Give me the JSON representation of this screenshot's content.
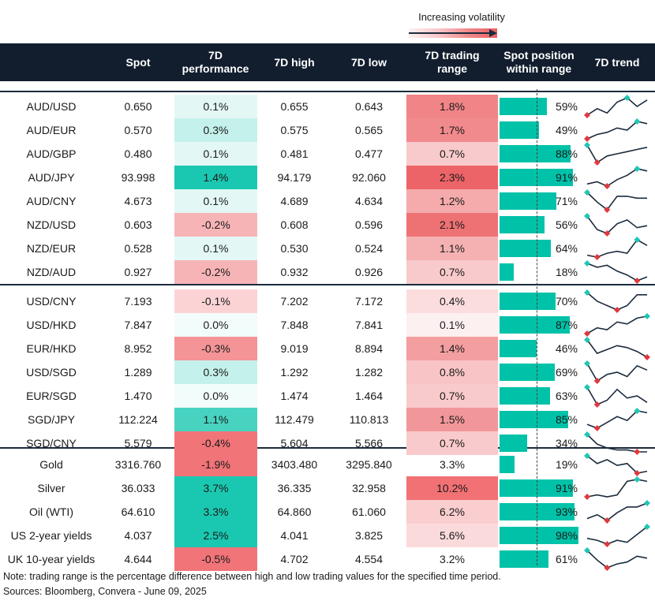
{
  "legend": {
    "label": "Increasing volatility"
  },
  "headers": {
    "spot": "Spot",
    "perf_line1": "7D",
    "perf_line2": "performance",
    "high": "7D high",
    "low": "7D low",
    "range_line1": "7D trading",
    "range_line2": "range",
    "pos_line1": "Spot position",
    "pos_line2": "within range",
    "trend": "7D trend"
  },
  "colors": {
    "header_bg": "#121e2e",
    "teal": "#00c2a8",
    "red": "#f06a6e",
    "trend_line": "#1b2b3c",
    "trend_high_marker": "#1fc7b4",
    "trend_low_marker": "#e0393e"
  },
  "groups": [
    {
      "rows": [
        {
          "pair": "AUD/USD",
          "spot": "0.650",
          "perf": "0.1%",
          "perf_val": 0.1,
          "high": "0.655",
          "low": "0.643",
          "range": "1.8%",
          "range_val": 1.8,
          "pos_pct": "59%",
          "pos": 59,
          "trend": [
            2,
            5,
            3,
            8,
            10,
            6,
            9
          ]
        },
        {
          "pair": "AUD/EUR",
          "spot": "0.570",
          "perf": "0.3%",
          "perf_val": 0.3,
          "high": "0.575",
          "low": "0.565",
          "range": "1.7%",
          "range_val": 1.7,
          "pos_pct": "49%",
          "pos": 49,
          "trend": [
            2,
            4,
            5,
            7,
            6,
            10,
            9
          ]
        },
        {
          "pair": "AUD/GBP",
          "spot": "0.480",
          "perf": "0.1%",
          "perf_val": 0.1,
          "high": "0.481",
          "low": "0.477",
          "range": "0.7%",
          "range_val": 0.7,
          "pos_pct": "88%",
          "pos": 88,
          "trend": [
            10,
            2,
            5,
            6,
            7,
            8,
            9
          ]
        },
        {
          "pair": "AUD/JPY",
          "spot": "93.998",
          "perf": "1.4%",
          "perf_val": 1.4,
          "high": "94.179",
          "low": "92.060",
          "range": "2.3%",
          "range_val": 2.3,
          "pos_pct": "91%",
          "pos": 91,
          "trend": [
            3,
            4,
            2,
            5,
            7,
            10,
            9
          ]
        },
        {
          "pair": "AUD/CNY",
          "spot": "4.673",
          "perf": "0.1%",
          "perf_val": 0.1,
          "high": "4.689",
          "low": "4.634",
          "range": "1.2%",
          "range_val": 1.2,
          "pos_pct": "71%",
          "pos": 71,
          "trend": [
            10,
            5,
            1,
            8,
            8,
            7,
            7
          ]
        },
        {
          "pair": "NZD/USD",
          "spot": "0.603",
          "perf": "-0.2%",
          "perf_val": -0.2,
          "high": "0.608",
          "low": "0.596",
          "range": "2.1%",
          "range_val": 2.1,
          "pos_pct": "56%",
          "pos": 56,
          "trend": [
            10,
            3,
            1,
            6,
            8,
            4,
            5
          ]
        },
        {
          "pair": "NZD/EUR",
          "spot": "0.528",
          "perf": "0.1%",
          "perf_val": 0.1,
          "high": "0.530",
          "low": "0.524",
          "range": "1.1%",
          "range_val": 1.1,
          "pos_pct": "64%",
          "pos": 64,
          "trend": [
            2,
            1,
            3,
            4,
            3,
            10,
            7
          ]
        },
        {
          "pair": "NZD/AUD",
          "spot": "0.927",
          "perf": "-0.2%",
          "perf_val": -0.2,
          "high": "0.932",
          "low": "0.926",
          "range": "0.7%",
          "range_val": 0.7,
          "pos_pct": "18%",
          "pos": 18,
          "trend": [
            10,
            8,
            9,
            6,
            4,
            1,
            3
          ]
        }
      ]
    },
    {
      "rows": [
        {
          "pair": "USD/CNY",
          "spot": "7.193",
          "perf": "-0.1%",
          "perf_val": -0.1,
          "high": "7.202",
          "low": "7.172",
          "range": "0.4%",
          "range_val": 0.4,
          "pos_pct": "70%",
          "pos": 70,
          "trend": [
            10,
            6,
            4,
            2,
            4,
            9,
            9
          ]
        },
        {
          "pair": "USD/HKD",
          "spot": "7.847",
          "perf": "0.0%",
          "perf_val": 0.0,
          "high": "7.848",
          "low": "7.841",
          "range": "0.1%",
          "range_val": 0.1,
          "pos_pct": "87%",
          "pos": 87,
          "trend": [
            1,
            4,
            3,
            7,
            6,
            9,
            10
          ]
        },
        {
          "pair": "EUR/HKD",
          "spot": "8.952",
          "perf": "-0.3%",
          "perf_val": -0.3,
          "high": "9.019",
          "low": "8.894",
          "range": "1.4%",
          "range_val": 1.4,
          "pos_pct": "46%",
          "pos": 46,
          "trend": [
            10,
            3,
            5,
            7,
            6,
            4,
            1
          ]
        },
        {
          "pair": "USD/SGD",
          "spot": "1.289",
          "perf": "0.3%",
          "perf_val": 0.3,
          "high": "1.292",
          "low": "1.282",
          "range": "0.8%",
          "range_val": 0.8,
          "pos_pct": "69%",
          "pos": 69,
          "trend": [
            10,
            2,
            5,
            6,
            4,
            9,
            7
          ]
        },
        {
          "pair": "EUR/SGD",
          "spot": "1.470",
          "perf": "0.0%",
          "perf_val": 0.0,
          "high": "1.474",
          "low": "1.464",
          "range": "0.7%",
          "range_val": 0.7,
          "pos_pct": "63%",
          "pos": 63,
          "trend": [
            10,
            2,
            4,
            9,
            5,
            6,
            3
          ]
        },
        {
          "pair": "SGD/JPY",
          "spot": "112.224",
          "perf": "1.1%",
          "perf_val": 1.1,
          "high": "112.479",
          "low": "110.813",
          "range": "1.5%",
          "range_val": 1.5,
          "pos_pct": "85%",
          "pos": 85,
          "trend": [
            3,
            1,
            4,
            7,
            5,
            10,
            9
          ]
        },
        {
          "pair": "SGD/CNY",
          "spot": "5.579",
          "perf": "-0.4%",
          "perf_val": -0.4,
          "high": "5.604",
          "low": "5.566",
          "range": "0.7%",
          "range_val": 0.7,
          "pos_pct": "34%",
          "pos": 34,
          "trend": [
            10,
            5,
            3,
            2,
            2,
            1,
            1
          ]
        }
      ]
    },
    {
      "rows": [
        {
          "pair": "Gold",
          "spot": "3316.760",
          "perf": "-1.9%",
          "perf_val": -1.9,
          "high": "3403.480",
          "low": "3295.840",
          "range": "3.3%",
          "range_val": 3.3,
          "pos_pct": "19%",
          "pos": 19,
          "trend": [
            10,
            6,
            8,
            5,
            6,
            1,
            2
          ]
        },
        {
          "pair": "Silver",
          "spot": "36.033",
          "perf": "3.7%",
          "perf_val": 3.7,
          "high": "36.335",
          "low": "32.958",
          "range": "10.2%",
          "range_val": 10.2,
          "pos_pct": "91%",
          "pos": 91,
          "trend": [
            1,
            2,
            1,
            2,
            9,
            10,
            9
          ]
        },
        {
          "pair": "Oil (WTI)",
          "spot": "64.610",
          "perf": "3.3%",
          "perf_val": 3.3,
          "high": "64.860",
          "low": "61.060",
          "range": "6.2%",
          "range_val": 6.2,
          "pos_pct": "93%",
          "pos": 93,
          "trend": [
            2,
            4,
            1,
            5,
            8,
            8,
            10
          ]
        },
        {
          "pair": "US 2-year yields",
          "spot": "4.037",
          "perf": "2.5%",
          "perf_val": 2.5,
          "high": "4.041",
          "low": "3.825",
          "range": "5.6%",
          "range_val": 5.6,
          "pos_pct": "98%",
          "pos": 98,
          "trend": [
            4,
            3,
            1,
            3,
            2,
            6,
            10
          ]
        },
        {
          "pair": "UK 10-year yields",
          "spot": "4.644",
          "perf": "-0.5%",
          "perf_val": -0.5,
          "high": "4.702",
          "low": "4.554",
          "range": "3.2%",
          "range_val": 3.2,
          "pos_pct": "61%",
          "pos": 61,
          "trend": [
            10,
            5,
            1,
            3,
            4,
            7,
            6
          ]
        }
      ]
    }
  ],
  "footer": {
    "note": "Note: trading range is the percentage difference between high and low trading values for the specified time period.",
    "sources": "Sources: Bloomberg, Convera - June 09, 2025"
  }
}
